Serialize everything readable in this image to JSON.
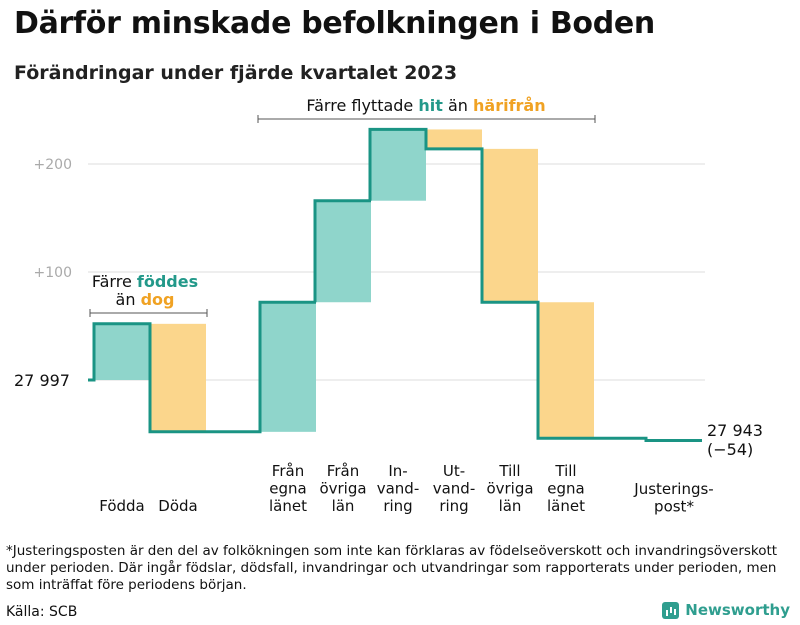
{
  "title": "Därför minskade befolkningen i Boden",
  "subtitle": "Förändringar under fjärde kvartalet 2023",
  "chart_data": {
    "type": "waterfall",
    "start": {
      "label": "27  997",
      "value": 27997
    },
    "end": {
      "label": "27 943",
      "change_label": "(−54)",
      "value": 27943
    },
    "yticks": [
      {
        "label": "+200",
        "value": 200
      },
      {
        "label": "+100",
        "value": 100
      }
    ],
    "steps": [
      {
        "id": "fodda",
        "label_lines": [
          "Födda"
        ],
        "value": 52,
        "kind": "in"
      },
      {
        "id": "doda",
        "label_lines": [
          "Döda"
        ],
        "value": -100,
        "kind": "out"
      },
      {
        "id": "fran-egna-lanet",
        "label_lines": [
          "Från",
          "egna",
          "länet"
        ],
        "value": 120,
        "kind": "in"
      },
      {
        "id": "fran-ovriga-lan",
        "label_lines": [
          "Från",
          "övriga",
          "län"
        ],
        "value": 94,
        "kind": "in"
      },
      {
        "id": "invandring",
        "label_lines": [
          "In-",
          "vand-",
          "ring"
        ],
        "value": 66,
        "kind": "in"
      },
      {
        "id": "utvandring",
        "label_lines": [
          "Ut-",
          "vand-",
          "ring"
        ],
        "value": -18,
        "kind": "out"
      },
      {
        "id": "till-ovriga-lan",
        "label_lines": [
          "Till",
          "övriga",
          "län"
        ],
        "value": -142,
        "kind": "out"
      },
      {
        "id": "till-egna-lanet",
        "label_lines": [
          "Till",
          "egna",
          "länet"
        ],
        "value": -126,
        "kind": "out"
      },
      {
        "id": "justeringspost",
        "label_lines": [
          "Justerings-",
          "post*"
        ],
        "value": -2,
        "kind": "adjust"
      }
    ],
    "colors": {
      "in": "#8fd5cb",
      "out": "#fbd68c",
      "line": "#1a9484",
      "grid": "#dddddd"
    },
    "annotations": {
      "birth": {
        "line1": "Färre ",
        "line1_em": "föddes",
        "line2": "än ",
        "line2_em": "dog"
      },
      "migration": {
        "pre": "Färre flyttade ",
        "em_in": "hit",
        "mid": " än ",
        "em_out": "härifrån"
      }
    }
  },
  "footnote": "*Justeringsposten är den del av folkökningen som inte kan förklaras av födelseöverskott och invandringsöverskott under perioden. Där ingår födslar, dödsfall, invandringar och utvandringar som rapporterats under perioden, men som inträffat före periodens början.",
  "source": "Källa: SCB",
  "brand": {
    "name": "Newsworthy",
    "icon": "bar-chart-logo-icon"
  }
}
